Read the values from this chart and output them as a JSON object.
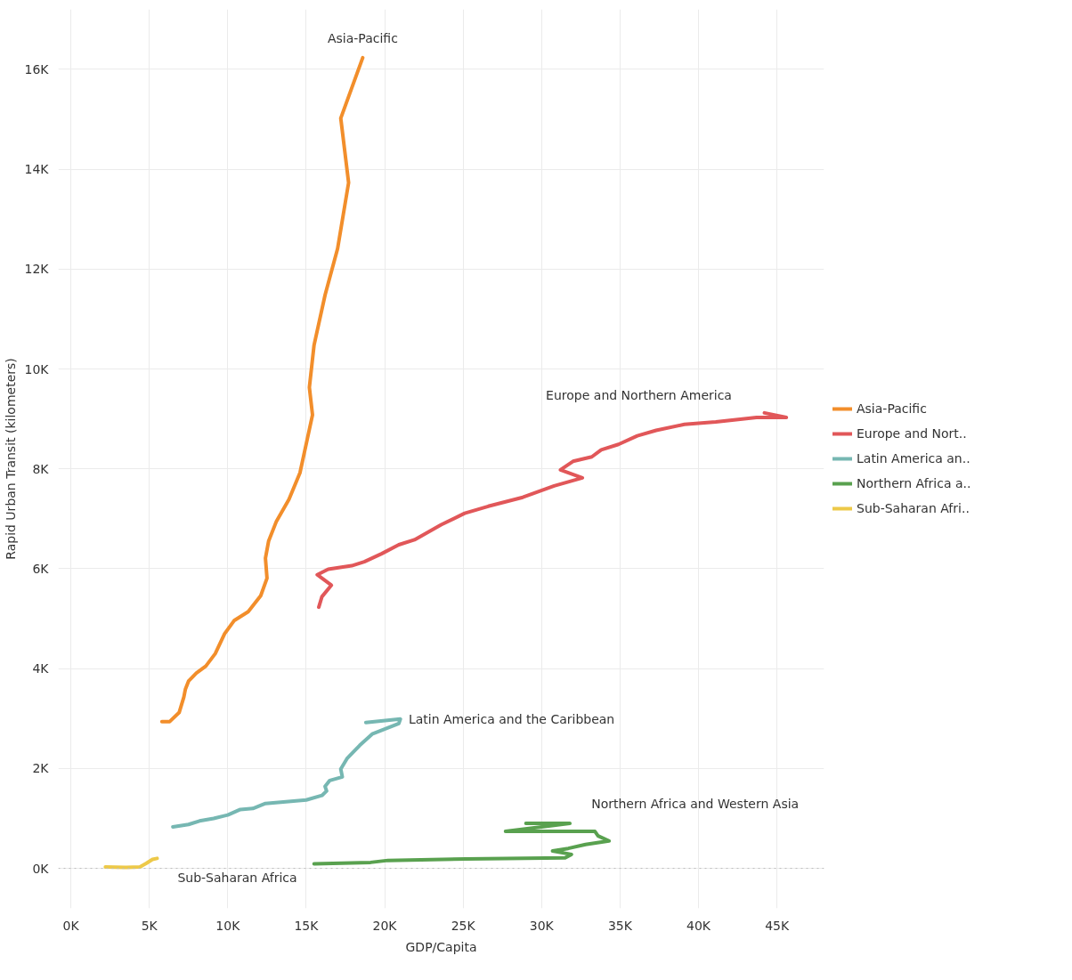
{
  "chart_data": {
    "type": "line",
    "xlabel": "GDP/Capita",
    "ylabel": "Rapid Urban Transit (kilometers)",
    "xlim": [
      -0.8,
      48
    ],
    "ylim": [
      -0.8,
      17.2
    ],
    "xticks": [
      {
        "value": 0,
        "label": "0K"
      },
      {
        "value": 5,
        "label": "5K"
      },
      {
        "value": 10,
        "label": "10K"
      },
      {
        "value": 15,
        "label": "15K"
      },
      {
        "value": 20,
        "label": "20K"
      },
      {
        "value": 25,
        "label": "25K"
      },
      {
        "value": 30,
        "label": "30K"
      },
      {
        "value": 35,
        "label": "35K"
      },
      {
        "value": 40,
        "label": "40K"
      },
      {
        "value": 45,
        "label": "45K"
      }
    ],
    "yticks": [
      {
        "value": 0,
        "label": "0K"
      },
      {
        "value": 2,
        "label": "2K"
      },
      {
        "value": 4,
        "label": "4K"
      },
      {
        "value": 6,
        "label": "6K"
      },
      {
        "value": 8,
        "label": "8K"
      },
      {
        "value": 10,
        "label": "10K"
      },
      {
        "value": 12,
        "label": "12K"
      },
      {
        "value": 14,
        "label": "14K"
      },
      {
        "value": 16,
        "label": "16K"
      }
    ],
    "grid": true,
    "legend": "right",
    "marker": "none",
    "line_style": "solid",
    "ref_lines": [
      {
        "axis": "y",
        "value": 0,
        "label": null,
        "color": "#bbbbbb",
        "line_style": "dotted"
      }
    ],
    "series": [
      {
        "name": "Asia-Pacific",
        "color": "#f28e2b",
        "x": [
          5.8,
          6.3,
          6.9,
          7.2,
          7.3,
          7.5,
          8.0,
          8.6,
          9.2,
          9.8,
          10.4,
          11.3,
          12.1,
          12.5,
          12.4,
          12.6,
          13.1,
          13.9,
          14.6,
          15.4,
          15.2,
          15.5,
          16.2,
          17.0,
          17.7,
          17.2,
          18.6
        ],
        "values": [
          2.94,
          2.94,
          3.12,
          3.43,
          3.59,
          3.75,
          3.91,
          4.05,
          4.3,
          4.7,
          4.96,
          5.14,
          5.46,
          5.81,
          6.21,
          6.55,
          6.95,
          7.39,
          7.92,
          9.08,
          9.63,
          10.48,
          11.48,
          12.41,
          13.73,
          15.02,
          16.23
        ]
      },
      {
        "name": "Europe and Nort..",
        "color": "#e15759",
        "x": [
          15.8,
          16.0,
          16.6,
          15.7,
          16.4,
          17.9,
          18.7,
          19.8,
          20.9,
          21.9,
          23.6,
          25.1,
          26.6,
          28.8,
          30.8,
          32.6,
          31.2,
          32.0,
          33.2,
          33.8,
          34.9,
          36.1,
          37.3,
          39.1,
          41.1,
          43.7,
          45.6,
          44.2
        ],
        "values": [
          5.23,
          5.44,
          5.67,
          5.88,
          5.99,
          6.06,
          6.14,
          6.3,
          6.48,
          6.58,
          6.88,
          7.11,
          7.25,
          7.43,
          7.66,
          7.82,
          7.98,
          8.15,
          8.24,
          8.38,
          8.49,
          8.66,
          8.77,
          8.89,
          8.94,
          9.03,
          9.03,
          9.12
        ]
      },
      {
        "name": "Latin America an..",
        "color": "#76b7b2",
        "x": [
          6.5,
          7.5,
          8.2,
          9.1,
          10.0,
          10.8,
          11.6,
          12.4,
          15.0,
          16.0,
          16.3,
          16.2,
          16.5,
          17.3,
          17.2,
          17.6,
          18.4,
          19.2,
          20.9,
          21.0,
          18.8
        ],
        "values": [
          0.83,
          0.88,
          0.95,
          1.0,
          1.07,
          1.18,
          1.2,
          1.3,
          1.37,
          1.46,
          1.55,
          1.64,
          1.76,
          1.83,
          1.99,
          2.2,
          2.46,
          2.69,
          2.9,
          2.99,
          2.92
        ]
      },
      {
        "name": "Northern Africa a..",
        "color": "#59a14f",
        "x": [
          15.5,
          19.1,
          20.2,
          25.2,
          31.5,
          31.9,
          30.7,
          31.7,
          32.8,
          34.3,
          33.6,
          33.4,
          27.7,
          30.0,
          31.8,
          29.0
        ],
        "values": [
          0.09,
          0.12,
          0.16,
          0.19,
          0.21,
          0.28,
          0.35,
          0.4,
          0.48,
          0.55,
          0.65,
          0.74,
          0.74,
          0.83,
          0.9,
          0.9
        ]
      },
      {
        "name": "Sub-Saharan Afri..",
        "color": "#edc948",
        "x": [
          2.2,
          3.5,
          4.4,
          4.8,
          5.2,
          5.5
        ],
        "values": [
          0.03,
          0.02,
          0.03,
          0.1,
          0.18,
          0.2
        ]
      }
    ],
    "annotations": [
      "Asia-Pacific",
      "Europe and Northern America",
      "Latin America and the Caribbean",
      "Northern Africa and Western Asia",
      "Sub-Saharan Africa"
    ]
  }
}
